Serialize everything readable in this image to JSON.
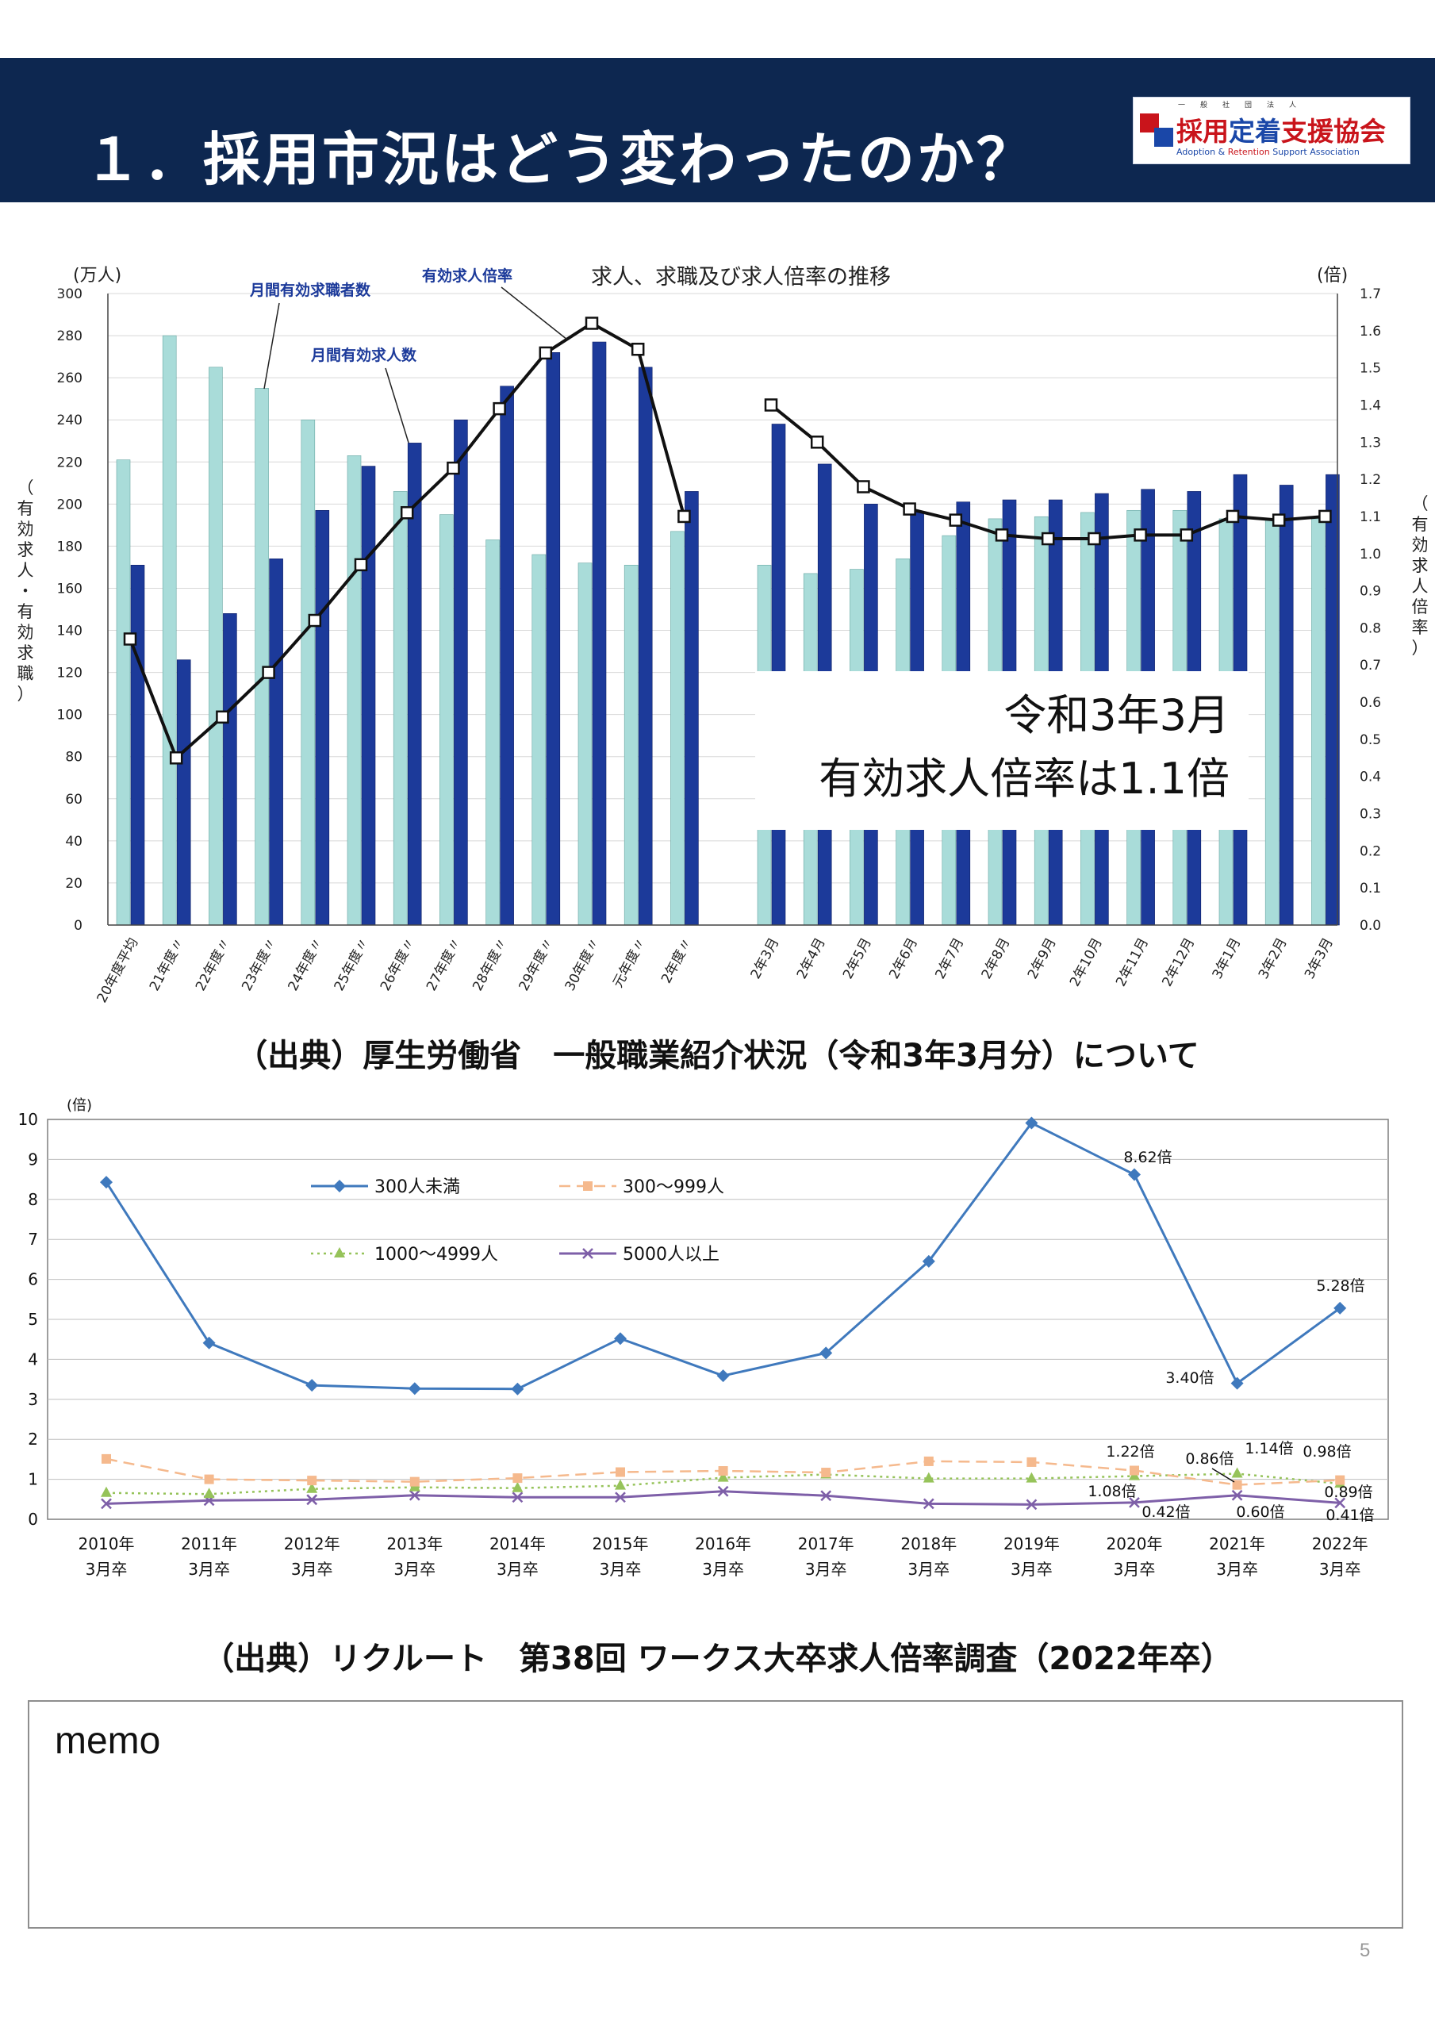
{
  "header": {
    "title": "１．採用市況はどう変わったのか？",
    "logo": {
      "ruby": "一般社団法人",
      "name_part1": "採用",
      "name_part2": "定着",
      "name_part3": "支援協会",
      "english_part1": "Adoption",
      "english_part2": " & ",
      "english_part3": "Retention",
      "english_part4": " Support Association"
    }
  },
  "chart_data": [
    {
      "type": "bar",
      "title": "求人、求職及び求人倍率の推移",
      "left_unit": "(万人)",
      "right_unit": "(倍)",
      "left_axis_label": "（有効求人・有効求職）",
      "right_axis_label": "（有効求人倍率）",
      "left_ylim": [
        0,
        300
      ],
      "left_ticks": [
        0,
        20,
        40,
        60,
        80,
        100,
        120,
        140,
        160,
        180,
        200,
        220,
        240,
        260,
        280,
        300
      ],
      "right_ylim": [
        0.0,
        1.7
      ],
      "right_ticks": [
        "0.0",
        "0.1",
        "0.2",
        "0.3",
        "0.4",
        "0.5",
        "0.6",
        "0.7",
        "0.8",
        "0.9",
        "1.0",
        "1.1",
        "1.2",
        "1.3",
        "1.4",
        "1.5",
        "1.6",
        "1.7"
      ],
      "categories": [
        "20年度平均",
        "21年度〃",
        "22年度〃",
        "23年度〃",
        "24年度〃",
        "25年度〃",
        "26年度〃",
        "27年度〃",
        "28年度〃",
        "29年度〃",
        "30年度〃",
        "元年度〃",
        "2年度〃",
        "2年3月",
        "2年4月",
        "2年5月",
        "2年6月",
        "2年7月",
        "2年8月",
        "2年9月",
        "2年10月",
        "2年11月",
        "2年12月",
        "3年1月",
        "3年2月",
        "3年3月"
      ],
      "series": [
        {
          "name": "月間有効求職者数",
          "color": "#a9dcd9",
          "values": [
            221,
            280,
            265,
            255,
            240,
            223,
            206,
            195,
            183,
            176,
            172,
            171,
            187,
            171,
            167,
            169,
            174,
            185,
            193,
            194,
            196,
            197,
            197,
            193,
            193,
            193
          ]
        },
        {
          "name": "月間有効求人数",
          "color": "#1c3a9a",
          "values": [
            171,
            126,
            148,
            174,
            197,
            218,
            229,
            240,
            256,
            272,
            277,
            265,
            206,
            238,
            219,
            200,
            196,
            201,
            202,
            202,
            205,
            207,
            206,
            214,
            209,
            214
          ]
        },
        {
          "name": "有効求人倍率",
          "values": [
            0.77,
            0.45,
            0.56,
            0.68,
            0.82,
            0.97,
            1.11,
            1.23,
            1.39,
            1.54,
            1.62,
            1.55,
            1.1,
            1.4,
            1.3,
            1.18,
            1.12,
            1.09,
            1.05,
            1.04,
            1.04,
            1.05,
            1.05,
            1.1,
            1.09,
            1.1
          ]
        }
      ],
      "callout": {
        "line1": "令和3年3月",
        "line2": "有効求人倍率は1.1倍"
      }
    },
    {
      "type": "line",
      "y_unit": "(倍)",
      "ylim": [
        0,
        10
      ],
      "y_ticks": [
        0,
        1,
        2,
        3,
        4,
        5,
        6,
        7,
        8,
        9,
        10
      ],
      "x_labels": [
        [
          "2010年",
          "3月卒"
        ],
        [
          "2011年",
          "3月卒"
        ],
        [
          "2012年",
          "3月卒"
        ],
        [
          "2013年",
          "3月卒"
        ],
        [
          "2014年",
          "3月卒"
        ],
        [
          "2015年",
          "3月卒"
        ],
        [
          "2016年",
          "3月卒"
        ],
        [
          "2017年",
          "3月卒"
        ],
        [
          "2018年",
          "3月卒"
        ],
        [
          "2019年",
          "3月卒"
        ],
        [
          "2020年",
          "3月卒"
        ],
        [
          "2021年",
          "3月卒"
        ],
        [
          "2022年",
          "3月卒"
        ]
      ],
      "series": [
        {
          "name": "300人未満",
          "color": "#3f79bd",
          "marker": "diamond",
          "values": [
            8.43,
            4.41,
            3.35,
            3.27,
            3.26,
            4.52,
            3.59,
            4.16,
            6.45,
            9.91,
            8.62,
            3.4,
            5.28
          ]
        },
        {
          "name": "300～999人",
          "color": "#f5b98d",
          "marker": "square",
          "values": [
            1.51,
            1.0,
            0.97,
            0.94,
            1.03,
            1.18,
            1.21,
            1.17,
            1.45,
            1.43,
            1.22,
            0.86,
            0.98
          ]
        },
        {
          "name": "1000～4999人",
          "color": "#96c35a",
          "marker": "triangle",
          "values": [
            0.66,
            0.63,
            0.76,
            0.8,
            0.78,
            0.84,
            1.04,
            1.12,
            1.02,
            1.02,
            1.08,
            1.14,
            0.89
          ]
        },
        {
          "name": "5000人以上",
          "color": "#7e5fa8",
          "marker": "x",
          "values": [
            0.39,
            0.47,
            0.49,
            0.6,
            0.55,
            0.55,
            0.7,
            0.59,
            0.39,
            0.37,
            0.42,
            0.6,
            0.41
          ]
        }
      ],
      "annotations": [
        "8.62倍",
        "5.28倍",
        "3.40倍",
        "1.22倍",
        "0.86倍",
        "1.14倍",
        "0.98倍",
        "1.08倍",
        "0.42倍",
        "0.60倍",
        "0.89倍",
        "0.41倍"
      ]
    }
  ],
  "sources": {
    "chart1": "（出典）厚生労働省　一般職業紹介状況（令和3年3月分）について",
    "chart2": "（出典）リクルート　第38回 ワークス大卒求人倍率調査（2022年卒）"
  },
  "memo": {
    "label": "memo"
  },
  "page_number": "5"
}
